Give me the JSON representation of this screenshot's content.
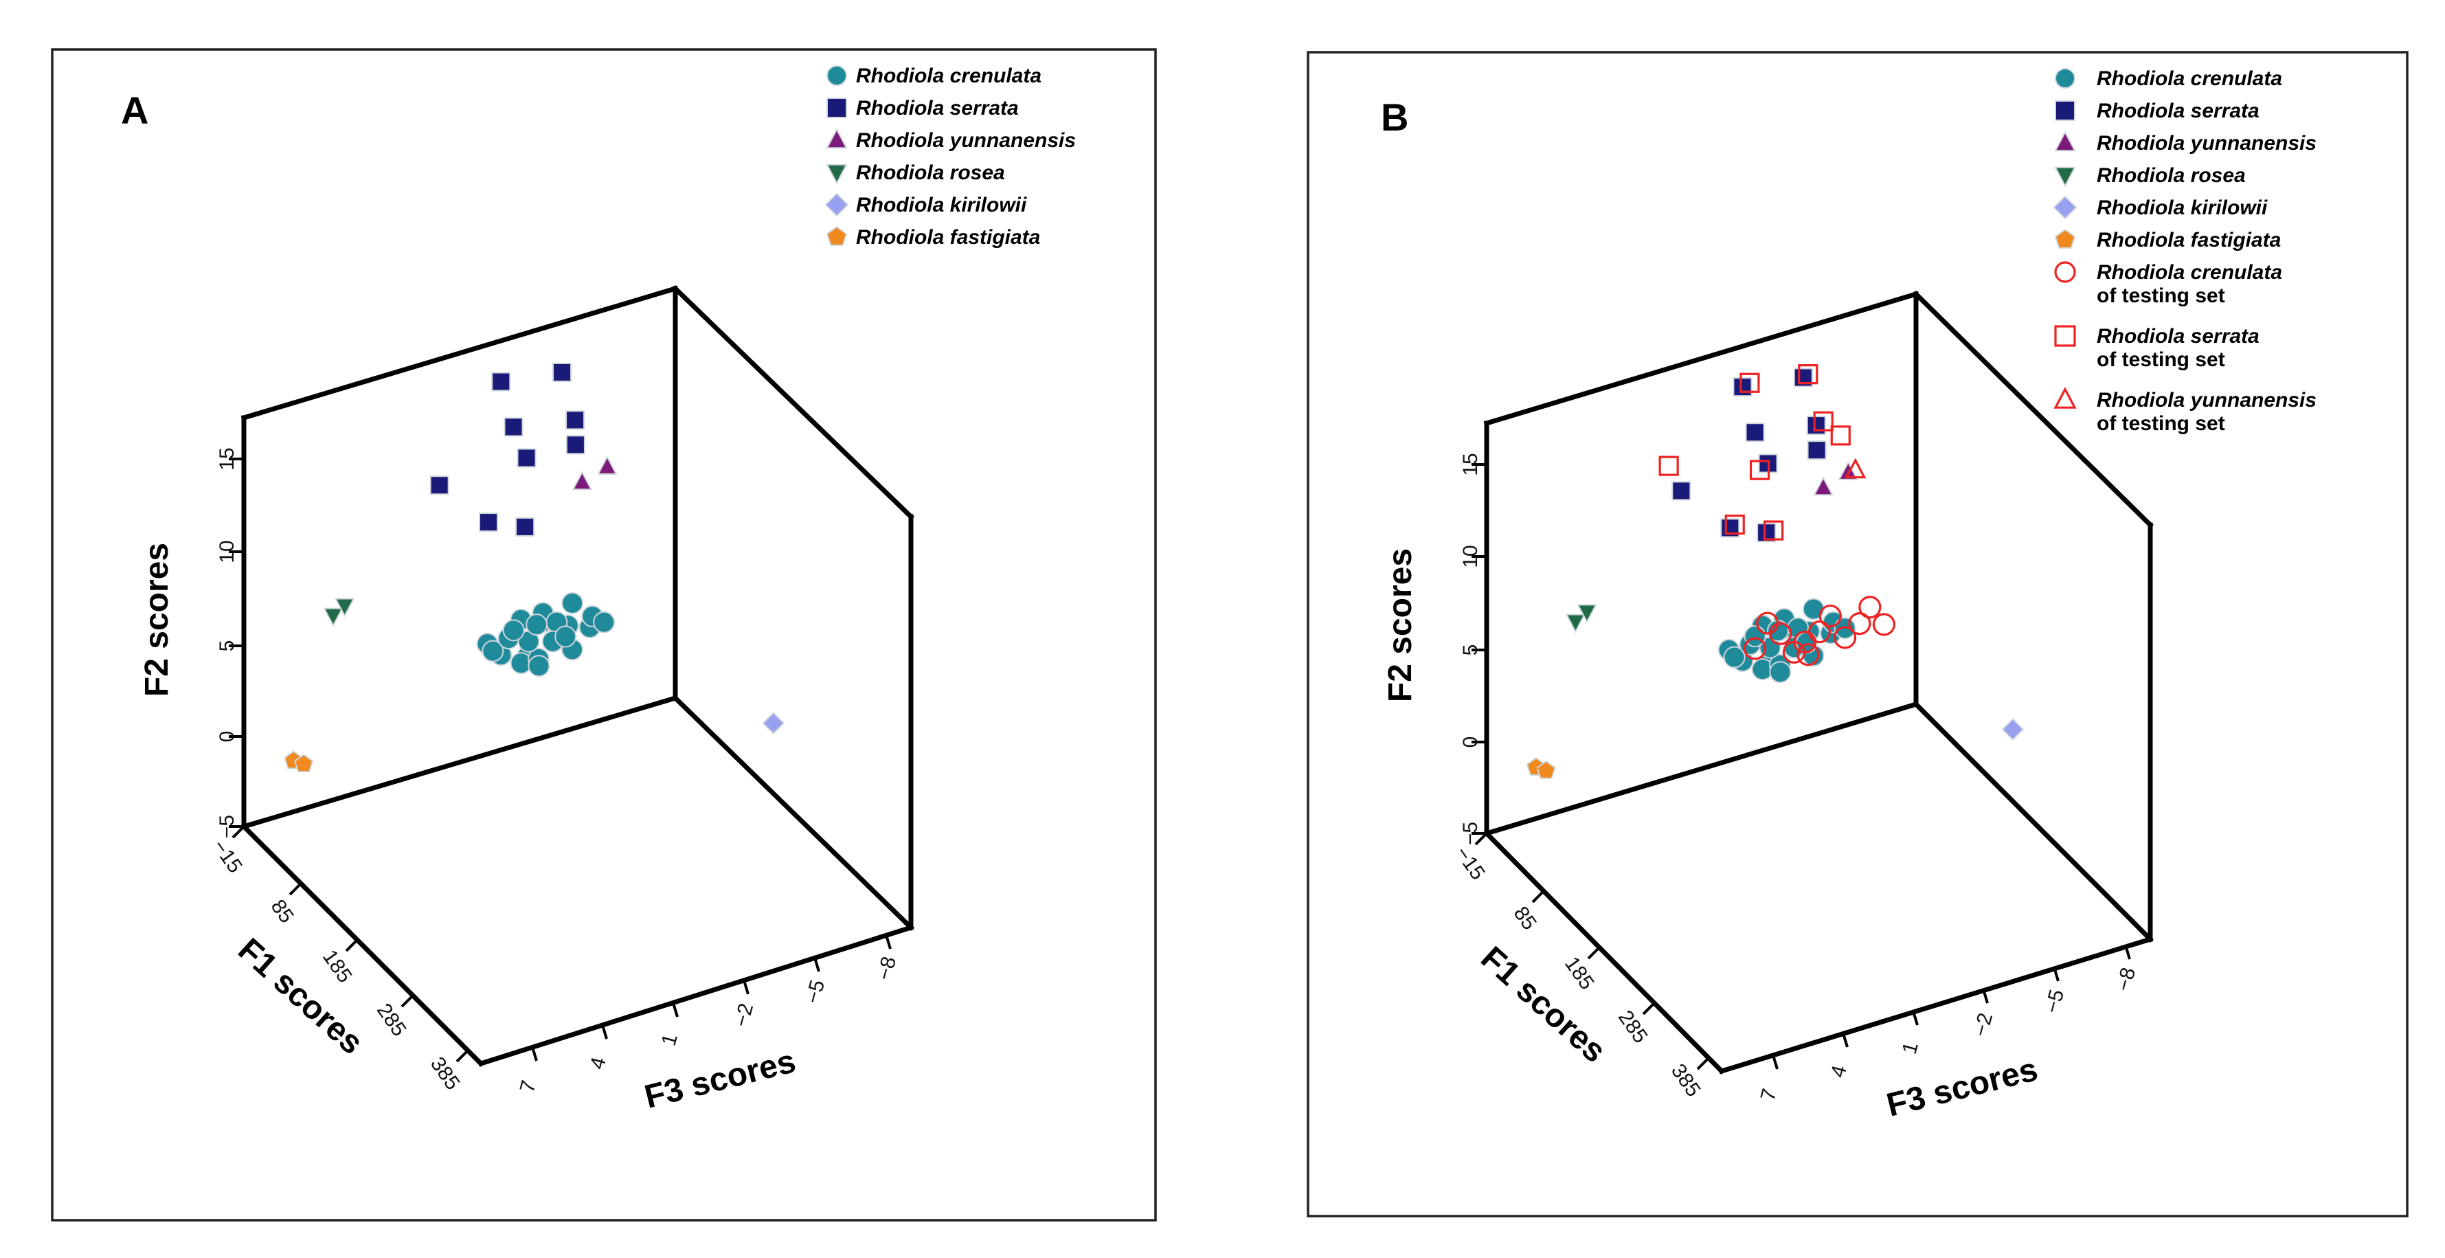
{
  "chart_data": [
    {
      "type": "scatter",
      "projection": "3d",
      "panel_label": "A",
      "xlabel": "F1 scores",
      "ylabel": "F2 scores",
      "zlabel": "F3 scores",
      "x_ticks": [
        "−15",
        "85",
        "185",
        "285",
        "385"
      ],
      "y_ticks": [
        "−5",
        "0",
        "5",
        "10",
        "15"
      ],
      "z_ticks": [
        "7",
        "4",
        "1",
        "−2",
        "−5",
        "−8"
      ],
      "xlim": [
        -15,
        420
      ],
      "ylim": [
        -5,
        17
      ],
      "zlim": [
        9,
        -9
      ],
      "legend": [
        {
          "label": "Rhodiola crenulata",
          "marker": "circle",
          "color": "#1f8a9a"
        },
        {
          "label": "Rhodiola serrata",
          "marker": "square",
          "color": "#1a1a78"
        },
        {
          "label": "Rhodiola yunnanensis",
          "marker": "triangle-up",
          "color": "#7b1a7b"
        },
        {
          "label": "Rhodiola rosea",
          "marker": "triangle-down",
          "color": "#1f6b47"
        },
        {
          "label": "Rhodiola kirilowii",
          "marker": "diamond",
          "color": "#9aa0f0"
        },
        {
          "label": "Rhodiola fastigiata",
          "marker": "pentagon",
          "color": "#f08a1e"
        }
      ],
      "series": [
        {
          "name": "Rhodiola crenulata",
          "points": [
            [
              -8,
              1.2,
              -1
            ],
            [
              -5,
              0.5,
              -1.5
            ],
            [
              -3,
              1.6,
              -2
            ],
            [
              0,
              0.2,
              -2.5
            ],
            [
              3,
              1.9,
              -3
            ],
            [
              5,
              0.8,
              -3.5
            ],
            [
              8,
              1.5,
              -4
            ],
            [
              10,
              0.3,
              -2
            ],
            [
              -6,
              2.1,
              -4.5
            ],
            [
              2,
              1.1,
              -1
            ],
            [
              6,
              2.5,
              -3
            ],
            [
              -2,
              -0.2,
              -3
            ],
            [
              4,
              0.9,
              -5
            ],
            [
              9,
              1.8,
              -1.5
            ],
            [
              -4,
              1.4,
              -3.8
            ],
            [
              1,
              2.3,
              -2.2
            ],
            [
              7,
              0.1,
              -4.2
            ],
            [
              11,
              1.0,
              -3.3
            ],
            [
              -7,
              0.7,
              -2.7
            ],
            [
              0,
              1.3,
              -5.2
            ],
            [
              5,
              2.0,
              -1.8
            ],
            [
              3,
              -0.4,
              -2.9
            ],
            [
              -1,
              0.6,
              -4.1
            ],
            [
              12,
              2.2,
              -2.6
            ],
            [
              8,
              1.1,
              -5.5
            ]
          ]
        },
        {
          "name": "Rhodiola serrata",
          "points": [
            [
              -5,
              15.2,
              -1.5
            ],
            [
              -3,
              14.8,
              -4
            ],
            [
              -4,
              12.6,
              -2
            ],
            [
              -1,
              12.1,
              -4.5
            ],
            [
              -2,
              10.8,
              -2.5
            ],
            [
              0,
              10.8,
              -4.5
            ],
            [
              -8,
              10.5,
              1
            ],
            [
              -6,
              7.8,
              -1
            ],
            [
              -5,
              7.0,
              -2.5
            ]
          ]
        },
        {
          "name": "Rhodiola yunnanensis",
          "points": [
            [
              -10,
              8.3,
              -5
            ],
            [
              -8,
              8.8,
              -6
            ]
          ]
        },
        {
          "name": "Rhodiola rosea",
          "points": [
            [
              -5,
              5.3,
              5.5
            ],
            [
              -6,
              5.6,
              5
            ]
          ]
        },
        {
          "name": "Rhodiola kirilowii",
          "points": [
            [
              385,
              7.3,
              -4
            ]
          ]
        },
        {
          "name": "Rhodiola fastigiata",
          "points": [
            [
              -3,
              -1.8,
              7.2
            ],
            [
              -2,
              -2.1,
              6.8
            ]
          ]
        }
      ]
    },
    {
      "type": "scatter",
      "projection": "3d",
      "panel_label": "B",
      "xlabel": "F1 scores",
      "ylabel": "F2 scores",
      "zlabel": "F3 scores",
      "x_ticks": [
        "−15",
        "85",
        "185",
        "285",
        "385"
      ],
      "y_ticks": [
        "−5",
        "0",
        "5",
        "10",
        "15"
      ],
      "z_ticks": [
        "7",
        "4",
        "1",
        "−2",
        "−5",
        "−8"
      ],
      "xlim": [
        -15,
        420
      ],
      "ylim": [
        -5,
        17
      ],
      "zlim": [
        9,
        -9
      ],
      "legend": [
        {
          "label": "Rhodiola crenulata",
          "marker": "circle",
          "color": "#1f8a9a"
        },
        {
          "label": "Rhodiola serrata",
          "marker": "square",
          "color": "#1a1a78"
        },
        {
          "label": "Rhodiola yunnanensis",
          "marker": "triangle-up",
          "color": "#7b1a7b"
        },
        {
          "label": "Rhodiola rosea",
          "marker": "triangle-down",
          "color": "#1f6b47"
        },
        {
          "label": "Rhodiola kirilowii",
          "marker": "diamond",
          "color": "#9aa0f0"
        },
        {
          "label": "Rhodiola fastigiata",
          "marker": "pentagon",
          "color": "#f08a1e"
        },
        {
          "label": "Rhodiola crenulata",
          "sublabel": "of testing set",
          "marker": "circle-open",
          "color": "#ee2222"
        },
        {
          "label": "Rhodiola serrata",
          "sublabel": "of testing set",
          "marker": "square-open",
          "color": "#ee2222"
        },
        {
          "label": "Rhodiola yunnanensis",
          "sublabel": "of testing set",
          "marker": "triangle-open",
          "color": "#ee2222"
        }
      ],
      "series": [
        {
          "name": "Rhodiola crenulata",
          "points": [
            [
              -8,
              1.2,
              -1
            ],
            [
              -5,
              0.5,
              -1.5
            ],
            [
              -3,
              1.6,
              -2
            ],
            [
              0,
              0.2,
              -2.5
            ],
            [
              3,
              1.9,
              -3
            ],
            [
              5,
              0.8,
              -3.5
            ],
            [
              8,
              1.5,
              -4
            ],
            [
              10,
              0.3,
              -2
            ],
            [
              -6,
              2.1,
              -4.5
            ],
            [
              2,
              1.1,
              -1
            ],
            [
              6,
              2.5,
              -3
            ],
            [
              -2,
              -0.2,
              -3
            ],
            [
              4,
              0.9,
              -5
            ],
            [
              9,
              1.8,
              -1.5
            ],
            [
              -4,
              1.4,
              -3.8
            ],
            [
              1,
              2.3,
              -2.2
            ],
            [
              7,
              0.1,
              -4.2
            ],
            [
              11,
              1.0,
              -3.3
            ],
            [
              -7,
              0.7,
              -2.7
            ],
            [
              0,
              1.3,
              -5.2
            ],
            [
              5,
              2.0,
              -1.8
            ],
            [
              3,
              -0.4,
              -2.9
            ],
            [
              -1,
              0.6,
              -4.1
            ],
            [
              12,
              2.2,
              -2.6
            ],
            [
              8,
              1.1,
              -5.5
            ]
          ]
        },
        {
          "name": "Rhodiola serrata",
          "points": [
            [
              -5,
              15.2,
              -1.5
            ],
            [
              -3,
              14.8,
              -4
            ],
            [
              -4,
              12.6,
              -2
            ],
            [
              -1,
              12.1,
              -4.5
            ],
            [
              -2,
              10.8,
              -2.5
            ],
            [
              0,
              10.8,
              -4.5
            ],
            [
              -8,
              10.5,
              1
            ],
            [
              -6,
              7.8,
              -1
            ],
            [
              -5,
              7.0,
              -2.5
            ]
          ]
        },
        {
          "name": "Rhodiola yunnanensis",
          "points": [
            [
              -10,
              8.3,
              -5
            ],
            [
              -8,
              8.8,
              -6
            ]
          ]
        },
        {
          "name": "Rhodiola rosea",
          "points": [
            [
              -5,
              5.3,
              5.5
            ],
            [
              -6,
              5.6,
              5
            ]
          ]
        },
        {
          "name": "Rhodiola kirilowii",
          "points": [
            [
              385,
              7.3,
              -4
            ]
          ]
        },
        {
          "name": "Rhodiola fastigiata",
          "points": [
            [
              -3,
              -1.8,
              7.2
            ],
            [
              -2,
              -2.1,
              6.8
            ]
          ]
        },
        {
          "name": "Rhodiola crenulata of testing set",
          "points": [
            [
              -4,
              1.0,
              -2
            ],
            [
              -1,
              1.5,
              -3
            ],
            [
              2,
              0.4,
              -3.5
            ],
            [
              5,
              1.2,
              -4.5
            ],
            [
              8,
              0.6,
              -5.5
            ],
            [
              10,
              1.9,
              -6.5
            ],
            [
              13,
              1.3,
              -6
            ],
            [
              -3,
              2.2,
              -2.5
            ],
            [
              3,
              1.8,
              -5
            ],
            [
              6,
              0.2,
              -4
            ],
            [
              14,
              0.9,
              -7
            ],
            [
              0,
              0.7,
              -4
            ]
          ]
        },
        {
          "name": "Rhodiola serrata of testing set",
          "points": [
            [
              -5,
              15.3,
              -1.8
            ],
            [
              -3,
              14.9,
              -4.2
            ],
            [
              -1,
              12.2,
              -4.8
            ],
            [
              0,
              11.2,
              -5.5
            ],
            [
              -9,
              12.0,
              1.5
            ],
            [
              -4,
              10.5,
              -2.2
            ],
            [
              -6,
              7.9,
              -1.2
            ],
            [
              -5,
              7.0,
              -2.8
            ]
          ]
        },
        {
          "name": "Rhodiola yunnanensis of testing set",
          "points": [
            [
              -8,
              8.8,
              -6.3
            ]
          ]
        }
      ]
    }
  ]
}
